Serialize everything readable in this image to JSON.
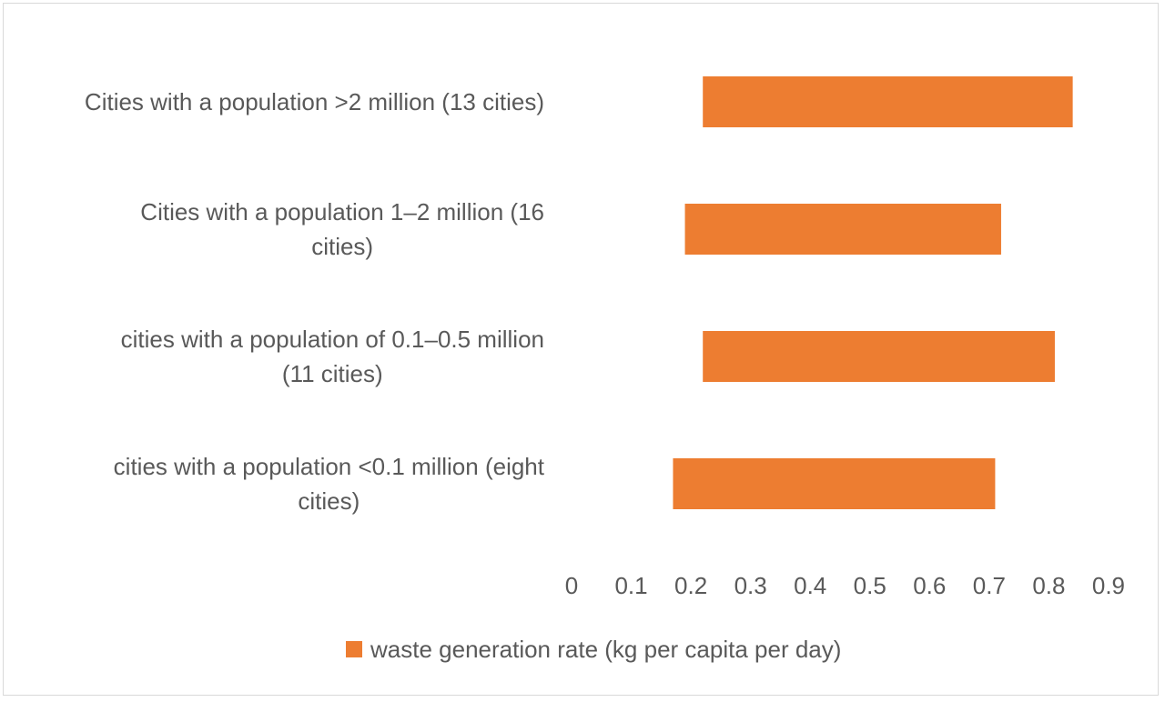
{
  "colors": {
    "bar": "#ED7D31",
    "text": "#595959",
    "border": "#D9D9D9"
  },
  "chart_data": {
    "type": "bar",
    "orientation": "horizontal",
    "style": "floating",
    "categories": [
      [
        "Cities with a population >2 million (13 cities)"
      ],
      [
        "Cities with a population 1–2 million (16",
        "cities)"
      ],
      [
        "cities with a population of 0.1–0.5 million",
        "(11 cities)"
      ],
      [
        "cities with a population <0.1 million (eight",
        "cities)"
      ]
    ],
    "series": [
      {
        "name": "waste generation rate (kg per capita per day)",
        "ranges": [
          [
            0.22,
            0.84
          ],
          [
            0.19,
            0.72
          ],
          [
            0.22,
            0.81
          ],
          [
            0.17,
            0.71
          ]
        ]
      }
    ],
    "x_ticks": [
      "0",
      "0.1",
      "0.2",
      "0.3",
      "0.4",
      "0.5",
      "0.6",
      "0.7",
      "0.8",
      "0.9"
    ],
    "xlim": [
      0,
      0.9
    ],
    "grid": false,
    "legend_position": "bottom"
  }
}
